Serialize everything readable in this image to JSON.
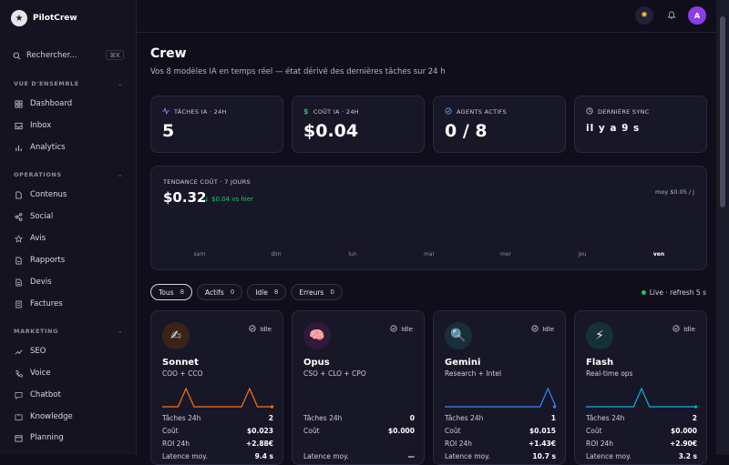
{
  "brand": {
    "name": "PilotCrew",
    "logo_glyph": "★"
  },
  "search": {
    "placeholder": "Rechercher...",
    "shortcut": "⌘K"
  },
  "sidebar": {
    "sections": [
      {
        "title": "VUE D'ENSEMBLE",
        "items": [
          {
            "label": "Dashboard",
            "icon": "grid-icon"
          },
          {
            "label": "Inbox",
            "icon": "inbox-icon"
          },
          {
            "label": "Analytics",
            "icon": "bar-chart-icon"
          }
        ]
      },
      {
        "title": "OPERATIONS",
        "items": [
          {
            "label": "Contenus",
            "icon": "document-icon"
          },
          {
            "label": "Social",
            "icon": "share-icon"
          },
          {
            "label": "Avis",
            "icon": "star-icon"
          },
          {
            "label": "Rapports",
            "icon": "report-icon"
          },
          {
            "label": "Devis",
            "icon": "file-icon"
          },
          {
            "label": "Factures",
            "icon": "invoice-icon"
          }
        ]
      },
      {
        "title": "MARKETING",
        "items": [
          {
            "label": "SEO",
            "icon": "trending-icon"
          },
          {
            "label": "Voice",
            "icon": "phone-icon"
          },
          {
            "label": "Chatbot",
            "icon": "chat-icon"
          },
          {
            "label": "Knowledge",
            "icon": "book-icon"
          },
          {
            "label": "Planning",
            "icon": "calendar-icon"
          }
        ]
      }
    ]
  },
  "topbar": {
    "avatar_initial": "A"
  },
  "page": {
    "title": "Crew",
    "subtitle": "Vos 8 modèles IA en temps réel — état dérivé des dernières tâches sur 24 h"
  },
  "stats": [
    {
      "label": "TÂCHES IA · 24H",
      "value": "5",
      "icon": "activity-icon",
      "color": "#a78bfa"
    },
    {
      "label": "COÛT IA · 24H",
      "value": "$0.04",
      "icon": "dollar-icon",
      "color": "#22c55e"
    },
    {
      "label": "AGENTS ACTIFS",
      "value": "0 / 8",
      "icon": "check-circle-icon",
      "color": "#60a5fa"
    },
    {
      "label": "DERNIÈRE SYNC",
      "value": "il y a 9 s",
      "icon": "clock-icon",
      "color": "#cfcde0"
    }
  ],
  "trend": {
    "label": "TENDANCE COÛT · 7 JOURS",
    "value": "$0.32",
    "delta": "↓ $0.04 vs hier",
    "avg": "moy $0.05 / j",
    "days": [
      "sam",
      "dim",
      "lun",
      "mar",
      "mer",
      "jeu",
      "ven"
    ],
    "active_day": "ven"
  },
  "filters": [
    {
      "label": "Tous",
      "count": "8",
      "active": true
    },
    {
      "label": "Actifs",
      "count": "0",
      "active": false
    },
    {
      "label": "Idle",
      "count": "8",
      "active": false
    },
    {
      "label": "Erreurs",
      "count": "0",
      "active": false
    }
  ],
  "live": "Live · refresh 5 s",
  "agents": [
    {
      "name": "Sonnet",
      "role": "COO + CCO",
      "status": "Idle",
      "emoji": "✍",
      "avatar_bg": "#3a2418",
      "color": "#f97316",
      "tasks_label": "Tâches 24h",
      "tasks": "2",
      "cost_label": "Coût",
      "cost": "$0.023",
      "roi_label": "ROI 24h",
      "roi": "+2.88€",
      "lat_label": "Latence moy.",
      "lat": "9.4 s",
      "spark": [
        0,
        0,
        0,
        1,
        0,
        0,
        0,
        0,
        0,
        0,
        0,
        1,
        0,
        0,
        0
      ]
    },
    {
      "name": "Opus",
      "role": "CSO + CLO + CPO",
      "status": "Idle",
      "emoji": "🧠",
      "avatar_bg": "#2f1a3a",
      "color": "#a855f7",
      "tasks_label": "Tâches 24h",
      "tasks": "0",
      "cost_label": "Coût",
      "cost": "$0.000",
      "roi_label": "",
      "roi": "",
      "lat_label": "Latence moy.",
      "lat": "—",
      "spark": []
    },
    {
      "name": "Gemini",
      "role": "Research + Intel",
      "status": "Idle",
      "emoji": "🔍",
      "avatar_bg": "#15303a",
      "color": "#3b82f6",
      "tasks_label": "Tâches 24h",
      "tasks": "1",
      "cost_label": "Coût",
      "cost": "$0.015",
      "roi_label": "ROI 24h",
      "roi": "+1.43€",
      "lat_label": "Latence moy.",
      "lat": "10.7 s",
      "spark": [
        0,
        0,
        0,
        0,
        0,
        0,
        0,
        0,
        0,
        0,
        0,
        0,
        0,
        1,
        0
      ]
    },
    {
      "name": "Flash",
      "role": "Real-time ops",
      "status": "Idle",
      "emoji": "⚡",
      "avatar_bg": "#16303a",
      "color": "#06b6d4",
      "tasks_label": "Tâches 24h",
      "tasks": "2",
      "cost_label": "Coût",
      "cost": "$0.000",
      "roi_label": "ROI 24h",
      "roi": "+2.90€",
      "lat_label": "Latence moy.",
      "lat": "3.2 s",
      "spark": [
        0,
        0,
        0,
        0,
        0,
        0,
        0,
        1,
        0,
        0,
        0,
        0,
        0,
        0,
        0
      ]
    }
  ]
}
